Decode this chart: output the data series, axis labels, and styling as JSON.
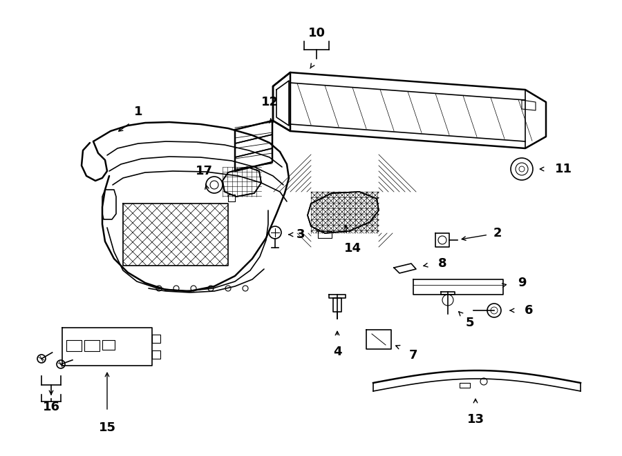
{
  "bg_color": "#ffffff",
  "line_color": "#000000",
  "fig_width": 9.0,
  "fig_height": 6.61,
  "dpi": 100,
  "label_fontsize": 13,
  "label_fontweight": "bold"
}
